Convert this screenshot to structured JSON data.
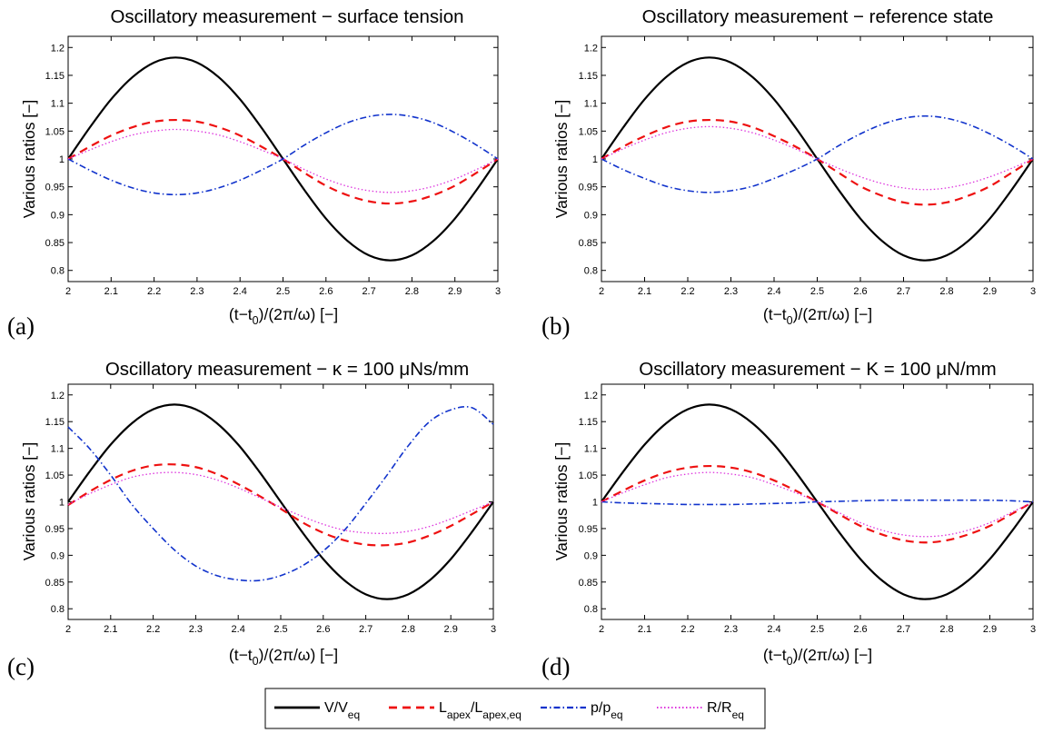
{
  "colors": {
    "V/V_eq": "#000000",
    "L_apex/L_apex,eq": "#ee1111",
    "p/p_eq": "#1133cc",
    "R/R_eq": "#dd33dd"
  },
  "legend": {
    "entries": [
      {
        "main": "V/V",
        "sub": "eq",
        "main2": "",
        "sub2": ""
      },
      {
        "main": "L",
        "sub": "apex",
        "main2": "/L",
        "sub2": "apex,eq"
      },
      {
        "main": "p/p",
        "sub": "eq",
        "main2": "",
        "sub2": ""
      },
      {
        "main": "R/R",
        "sub": "eq",
        "main2": "",
        "sub2": ""
      }
    ]
  },
  "chart_data": [
    {
      "type": "line",
      "panel_label": "(a)",
      "title": "Oscillatory measurement − surface tension",
      "xlabel": {
        "main": "(t−t",
        "sub": "0",
        "rest": ")/(2π/ω) [−]"
      },
      "ylabel": "Various ratios [−]",
      "xlim": [
        2,
        3
      ],
      "ylim": [
        0.78,
        1.22
      ],
      "xticks": [
        "2",
        "2.1",
        "2.2",
        "2.3",
        "2.4",
        "2.5",
        "2.6",
        "2.7",
        "2.8",
        "2.9",
        "3"
      ],
      "yticks": [
        "0.8",
        "0.85",
        "0.9",
        "0.95",
        "1",
        "1.05",
        "1.1",
        "1.15",
        "1.2"
      ],
      "x": [
        2.0,
        2.05,
        2.1,
        2.15,
        2.2,
        2.25,
        2.3,
        2.35,
        2.4,
        2.45,
        2.5,
        2.55,
        2.6,
        2.65,
        2.7,
        2.75,
        2.8,
        2.85,
        2.9,
        2.95,
        3.0
      ],
      "series": [
        {
          "name": "V/V_eq",
          "values": [
            1.0,
            1.056,
            1.107,
            1.147,
            1.173,
            1.182,
            1.173,
            1.147,
            1.107,
            1.056,
            1.0,
            0.944,
            0.893,
            0.853,
            0.827,
            0.818,
            0.827,
            0.853,
            0.893,
            0.944,
            1.0
          ]
        },
        {
          "name": "L_apex/L_apex,eq",
          "values": [
            1.0,
            1.022,
            1.042,
            1.057,
            1.067,
            1.07,
            1.067,
            1.057,
            1.042,
            1.022,
            1.0,
            0.975,
            0.952,
            0.935,
            0.924,
            0.92,
            0.924,
            0.935,
            0.952,
            0.975,
            1.0
          ]
        },
        {
          "name": "p/p_eq",
          "values": [
            1.0,
            0.98,
            0.962,
            0.948,
            0.939,
            0.936,
            0.939,
            0.948,
            0.962,
            0.98,
            1.0,
            1.025,
            1.047,
            1.065,
            1.076,
            1.08,
            1.076,
            1.065,
            1.047,
            1.025,
            1.0
          ]
        },
        {
          "name": "R/R_eq",
          "values": [
            1.0,
            1.016,
            1.031,
            1.043,
            1.05,
            1.053,
            1.05,
            1.043,
            1.031,
            1.016,
            1.0,
            0.981,
            0.964,
            0.951,
            0.943,
            0.94,
            0.943,
            0.951,
            0.964,
            0.981,
            1.0
          ]
        }
      ]
    },
    {
      "type": "line",
      "panel_label": "(b)",
      "title": "Oscillatory measurement − reference state",
      "xlabel": {
        "main": "(t−t",
        "sub": "0",
        "rest": ")/(2π/ω) [−]"
      },
      "ylabel": "Various ratios [−]",
      "xlim": [
        2,
        3
      ],
      "ylim": [
        0.78,
        1.22
      ],
      "xticks": [
        "2",
        "2.1",
        "2.2",
        "2.3",
        "2.4",
        "2.5",
        "2.6",
        "2.7",
        "2.8",
        "2.9",
        "3"
      ],
      "yticks": [
        "0.8",
        "0.85",
        "0.9",
        "0.95",
        "1",
        "1.05",
        "1.1",
        "1.15",
        "1.2"
      ],
      "x": [
        2.0,
        2.05,
        2.1,
        2.15,
        2.2,
        2.25,
        2.3,
        2.35,
        2.4,
        2.45,
        2.5,
        2.55,
        2.6,
        2.65,
        2.7,
        2.75,
        2.8,
        2.85,
        2.9,
        2.95,
        3.0
      ],
      "series": [
        {
          "name": "V/V_eq",
          "values": [
            1.0,
            1.056,
            1.107,
            1.147,
            1.173,
            1.182,
            1.173,
            1.147,
            1.107,
            1.056,
            1.0,
            0.944,
            0.893,
            0.853,
            0.827,
            0.818,
            0.827,
            0.853,
            0.893,
            0.944,
            1.0
          ]
        },
        {
          "name": "L_apex/L_apex,eq",
          "values": [
            1.0,
            1.022,
            1.041,
            1.057,
            1.067,
            1.07,
            1.067,
            1.057,
            1.041,
            1.022,
            1.0,
            0.975,
            0.951,
            0.934,
            0.922,
            0.918,
            0.922,
            0.934,
            0.951,
            0.975,
            1.0
          ]
        },
        {
          "name": "p/p_eq",
          "values": [
            1.0,
            0.981,
            0.965,
            0.951,
            0.943,
            0.94,
            0.943,
            0.951,
            0.965,
            0.981,
            1.0,
            1.024,
            1.045,
            1.062,
            1.073,
            1.077,
            1.073,
            1.062,
            1.045,
            1.024,
            1.0
          ]
        },
        {
          "name": "R/R_eq",
          "values": [
            1.0,
            1.018,
            1.034,
            1.047,
            1.055,
            1.058,
            1.055,
            1.047,
            1.034,
            1.018,
            1.0,
            0.983,
            0.968,
            0.956,
            0.948,
            0.945,
            0.948,
            0.956,
            0.968,
            0.983,
            1.0
          ]
        }
      ]
    },
    {
      "type": "line",
      "panel_label": "(c)",
      "title": "Oscillatory measurement − κ = 100 μNs/mm",
      "xlabel": {
        "main": "(t−t",
        "sub": "0",
        "rest": ")/(2π/ω) [−]"
      },
      "ylabel": "Various ratios [−]",
      "xlim": [
        2,
        3
      ],
      "ylim": [
        0.78,
        1.22
      ],
      "xticks": [
        "2",
        "2.1",
        "2.2",
        "2.3",
        "2.4",
        "2.5",
        "2.6",
        "2.7",
        "2.8",
        "2.9",
        "3"
      ],
      "yticks": [
        "0.8",
        "0.85",
        "0.9",
        "0.95",
        "1",
        "1.05",
        "1.1",
        "1.15",
        "1.2"
      ],
      "x": [
        2.0,
        2.05,
        2.1,
        2.15,
        2.2,
        2.25,
        2.3,
        2.35,
        2.4,
        2.45,
        2.5,
        2.55,
        2.6,
        2.65,
        2.7,
        2.75,
        2.8,
        2.85,
        2.9,
        2.95,
        3.0
      ],
      "series": [
        {
          "name": "V/V_eq",
          "values": [
            1.0,
            1.056,
            1.107,
            1.147,
            1.173,
            1.182,
            1.173,
            1.147,
            1.107,
            1.056,
            1.0,
            0.944,
            0.893,
            0.853,
            0.827,
            0.818,
            0.827,
            0.853,
            0.893,
            0.944,
            1.0
          ]
        },
        {
          "name": "L_apex/L_apex,eq",
          "values": [
            0.994,
            1.019,
            1.041,
            1.058,
            1.068,
            1.07,
            1.065,
            1.052,
            1.033,
            1.011,
            0.987,
            0.962,
            0.942,
            0.928,
            0.92,
            0.919,
            0.924,
            0.937,
            0.955,
            0.977,
            1.0
          ]
        },
        {
          "name": "p/p_eq",
          "values": [
            1.14,
            1.1,
            1.05,
            0.995,
            0.95,
            0.91,
            0.88,
            0.862,
            0.854,
            0.853,
            0.862,
            0.88,
            0.908,
            0.947,
            0.997,
            1.05,
            1.105,
            1.15,
            1.172,
            1.176,
            1.145
          ]
        },
        {
          "name": "R/R_eq",
          "values": [
            0.995,
            1.015,
            1.032,
            1.046,
            1.053,
            1.055,
            1.051,
            1.041,
            1.026,
            1.008,
            0.99,
            0.973,
            0.958,
            0.947,
            0.942,
            0.941,
            0.945,
            0.954,
            0.968,
            0.984,
            1.0
          ]
        }
      ]
    },
    {
      "type": "line",
      "panel_label": "(d)",
      "title": "Oscillatory measurement − K = 100 μN/mm",
      "xlabel": {
        "main": "(t−t",
        "sub": "0",
        "rest": ")/(2π/ω) [−]"
      },
      "ylabel": "Various ratios [−]",
      "xlim": [
        2,
        3
      ],
      "ylim": [
        0.78,
        1.22
      ],
      "xticks": [
        "2",
        "2.1",
        "2.2",
        "2.3",
        "2.4",
        "2.5",
        "2.6",
        "2.7",
        "2.8",
        "2.9",
        "3"
      ],
      "yticks": [
        "0.8",
        "0.85",
        "0.9",
        "0.95",
        "1",
        "1.05",
        "1.1",
        "1.15",
        "1.2"
      ],
      "x": [
        2.0,
        2.05,
        2.1,
        2.15,
        2.2,
        2.25,
        2.3,
        2.35,
        2.4,
        2.45,
        2.5,
        2.55,
        2.6,
        2.65,
        2.7,
        2.75,
        2.8,
        2.85,
        2.9,
        2.95,
        3.0
      ],
      "series": [
        {
          "name": "V/V_eq",
          "values": [
            1.0,
            1.056,
            1.107,
            1.147,
            1.173,
            1.182,
            1.173,
            1.147,
            1.107,
            1.056,
            1.0,
            0.944,
            0.893,
            0.853,
            0.827,
            0.818,
            0.827,
            0.853,
            0.893,
            0.944,
            1.0
          ]
        },
        {
          "name": "L_apex/L_apex,eq",
          "values": [
            1.0,
            1.021,
            1.04,
            1.055,
            1.064,
            1.067,
            1.064,
            1.055,
            1.04,
            1.021,
            1.0,
            0.977,
            0.955,
            0.939,
            0.928,
            0.924,
            0.928,
            0.939,
            0.955,
            0.977,
            1.0
          ]
        },
        {
          "name": "p/p_eq",
          "values": [
            1.0,
            0.998,
            0.997,
            0.996,
            0.995,
            0.995,
            0.995,
            0.996,
            0.997,
            0.998,
            1.0,
            1.001,
            1.002,
            1.003,
            1.003,
            1.003,
            1.003,
            1.003,
            1.003,
            1.002,
            1.0
          ]
        },
        {
          "name": "R/R_eq",
          "values": [
            1.0,
            1.017,
            1.032,
            1.045,
            1.052,
            1.055,
            1.052,
            1.045,
            1.032,
            1.017,
            1.0,
            0.98,
            0.961,
            0.947,
            0.938,
            0.935,
            0.938,
            0.947,
            0.961,
            0.98,
            1.0
          ]
        }
      ]
    }
  ]
}
